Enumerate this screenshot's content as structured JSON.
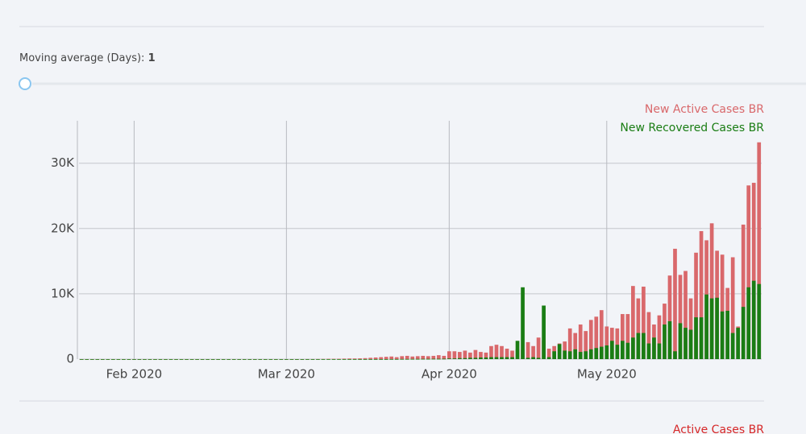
{
  "slider": {
    "label": "Moving average (Days):",
    "value": "1"
  },
  "next_chart_legend": "Active Cases BR",
  "chart_data": {
    "type": "bar",
    "categories": [
      null,
      null,
      null,
      null,
      null,
      null,
      null,
      null,
      null,
      null,
      null,
      null,
      null,
      null,
      null,
      null,
      null,
      null,
      null,
      null,
      null,
      null,
      null,
      null,
      null,
      null,
      null,
      null,
      null,
      null,
      null,
      null,
      null,
      null,
      null,
      null,
      null,
      null,
      null,
      null,
      null,
      null,
      null,
      null,
      null,
      null,
      null,
      null,
      null,
      null,
      null,
      null,
      null,
      null,
      null,
      null,
      null,
      null,
      null,
      null,
      null,
      null,
      null,
      null,
      null,
      null,
      null,
      null,
      null,
      null,
      null,
      null,
      null,
      null,
      null,
      null,
      null,
      null,
      null,
      null,
      null,
      null,
      null,
      null,
      null,
      null,
      null,
      null,
      null,
      null,
      null,
      null,
      null,
      null,
      null,
      null,
      null,
      null,
      null,
      null,
      null,
      null,
      null,
      null,
      null,
      null,
      null,
      null,
      null,
      null,
      null,
      null,
      null,
      null,
      null,
      null,
      null,
      null,
      null,
      null,
      null,
      null,
      null,
      null,
      null,
      null,
      null,
      null,
      null,
      null
    ],
    "xticks": [
      {
        "value": 10,
        "label": "Feb 2020"
      },
      {
        "value": 39,
        "label": "Mar 2020"
      },
      {
        "value": 70,
        "label": "Apr 2020"
      },
      {
        "value": 100,
        "label": "May 2020"
      }
    ],
    "ylim": [
      0,
      36500
    ],
    "yticks": [
      0,
      {
        "value": 10000,
        "label": "10K"
      },
      {
        "value": 20000,
        "label": "20K"
      },
      {
        "value": 30000,
        "label": "30K"
      }
    ],
    "grid": true,
    "legend": "top-right",
    "series": [
      {
        "name": "New Active Cases BR",
        "color": "#d9686b",
        "values": [
          0,
          0,
          0,
          0,
          0,
          0,
          0,
          0,
          0,
          0,
          0,
          0,
          0,
          0,
          0,
          0,
          0,
          0,
          0,
          0,
          0,
          0,
          0,
          0,
          0,
          0,
          0,
          0,
          0,
          0,
          0,
          0,
          0,
          0,
          0,
          0,
          0,
          0,
          0,
          0,
          0,
          0,
          0,
          10,
          10,
          20,
          30,
          50,
          50,
          60,
          80,
          100,
          100,
          120,
          150,
          200,
          250,
          300,
          350,
          400,
          300,
          450,
          500,
          400,
          450,
          500,
          450,
          500,
          600,
          500,
          1200,
          1200,
          1100,
          1300,
          1000,
          1400,
          1100,
          1000,
          2000,
          2200,
          2000,
          1600,
          1300,
          1500,
          1400,
          2600,
          2000,
          3300,
          2900,
          1600,
          2000,
          2400,
          2700,
          4700,
          4000,
          5300,
          4300,
          6000,
          6500,
          7500,
          5000,
          4800,
          4700,
          6900,
          6900,
          11200,
          9300,
          11100,
          7200,
          5300,
          6700,
          8500,
          12800,
          16900,
          12900,
          13500,
          9300,
          16300,
          19600,
          18200,
          20800,
          16600,
          16000,
          10900,
          15600,
          5000,
          20600,
          26600,
          27000,
          33200
        ]
      },
      {
        "name": "New Recovered Cases BR",
        "color": "#1a7d14",
        "values": [
          0,
          0,
          0,
          0,
          0,
          0,
          0,
          0,
          0,
          0,
          0,
          0,
          0,
          0,
          0,
          0,
          0,
          0,
          0,
          0,
          0,
          0,
          0,
          0,
          0,
          0,
          0,
          0,
          0,
          0,
          0,
          0,
          0,
          0,
          0,
          0,
          0,
          0,
          0,
          0,
          0,
          0,
          0,
          0,
          0,
          0,
          0,
          0,
          0,
          0,
          0,
          0,
          0,
          0,
          0,
          0,
          0,
          0,
          0,
          10,
          10,
          20,
          20,
          30,
          30,
          40,
          40,
          50,
          50,
          60,
          100,
          100,
          150,
          150,
          200,
          200,
          250,
          250,
          300,
          300,
          300,
          300,
          300,
          2800,
          11000,
          200,
          300,
          200,
          8200,
          300,
          1200,
          2300,
          1300,
          1200,
          1500,
          1100,
          1200,
          1500,
          1700,
          1900,
          2100,
          2800,
          2200,
          2800,
          2500,
          3300,
          4000,
          4000,
          2400,
          3300,
          2400,
          5300,
          5800,
          1200,
          5500,
          4800,
          4500,
          6400,
          6400,
          9900,
          9300,
          9400,
          7300,
          7400,
          4000,
          4800,
          8000,
          11000,
          12000,
          11500
        ]
      }
    ]
  }
}
